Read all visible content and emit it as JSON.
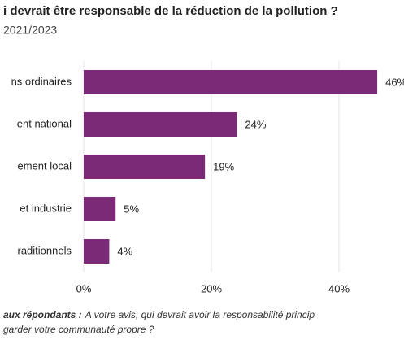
{
  "chart_data": {
    "type": "hbar",
    "title": "i devrait être responsable de la réduction de la pollution ?",
    "subtitle": "2021/2023",
    "categories": [
      "ns ordinaires",
      "ent national",
      "ement local",
      "et industrie",
      "raditionnels"
    ],
    "values": [
      46,
      24,
      19,
      5,
      4
    ],
    "value_labels": [
      "46%",
      "24%",
      "19%",
      "5%",
      "4%"
    ],
    "color": "#7b2a78",
    "xlim": [
      0,
      50
    ],
    "xticks": [
      {
        "value": 0,
        "label": "0%"
      },
      {
        "value": 20,
        "label": "20%"
      },
      {
        "value": 40,
        "label": "40%"
      }
    ],
    "grid": true,
    "note_lead": "aux répondants :",
    "note_text": "A votre avis, qui devrait avoir la responsabilité princip",
    "note_line2": "garder votre communauté propre ?"
  }
}
